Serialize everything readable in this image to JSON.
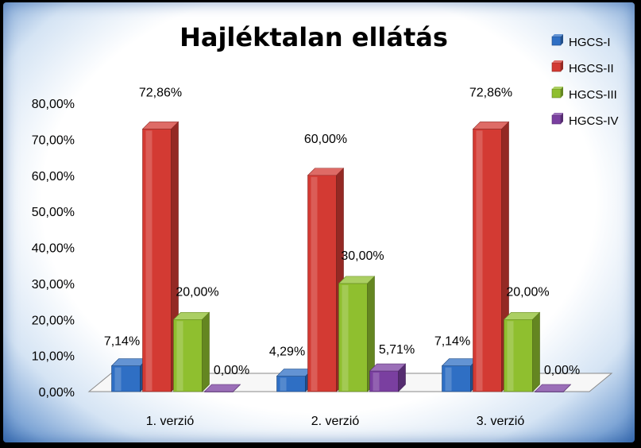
{
  "chart_data": {
    "type": "bar",
    "title": "Hajléktalan ellátás",
    "categories": [
      "1. verzió",
      "2. verzió",
      "3. verzió"
    ],
    "series": [
      {
        "name": "HGCS-I",
        "values": [
          7.14,
          4.29,
          7.14
        ],
        "labels": [
          "7,14%",
          "4,29%",
          "7,14%"
        ],
        "color": "#2f6fc4"
      },
      {
        "name": "HGCS-II",
        "values": [
          72.86,
          60.0,
          72.86
        ],
        "labels": [
          "72,86%",
          "60,00%",
          "72,86%"
        ],
        "color": "#d33a33"
      },
      {
        "name": "HGCS-III",
        "values": [
          20.0,
          30.0,
          20.0
        ],
        "labels": [
          "20,00%",
          "30,00%",
          "20,00%"
        ],
        "color": "#8fbf2f"
      },
      {
        "name": "HGCS-IV",
        "values": [
          0.0,
          5.71,
          0.0
        ],
        "labels": [
          "0,00%",
          "5,71%",
          "0,00%"
        ],
        "color": "#7a3fa0"
      }
    ],
    "ylim": [
      0,
      80
    ],
    "yticks": [
      "0,00%",
      "10,00%",
      "20,00%",
      "30,00%",
      "40,00%",
      "50,00%",
      "60,00%",
      "70,00%",
      "80,00%"
    ],
    "legend_position": "top-right",
    "grid": false,
    "style": "3d-clustered-column"
  }
}
